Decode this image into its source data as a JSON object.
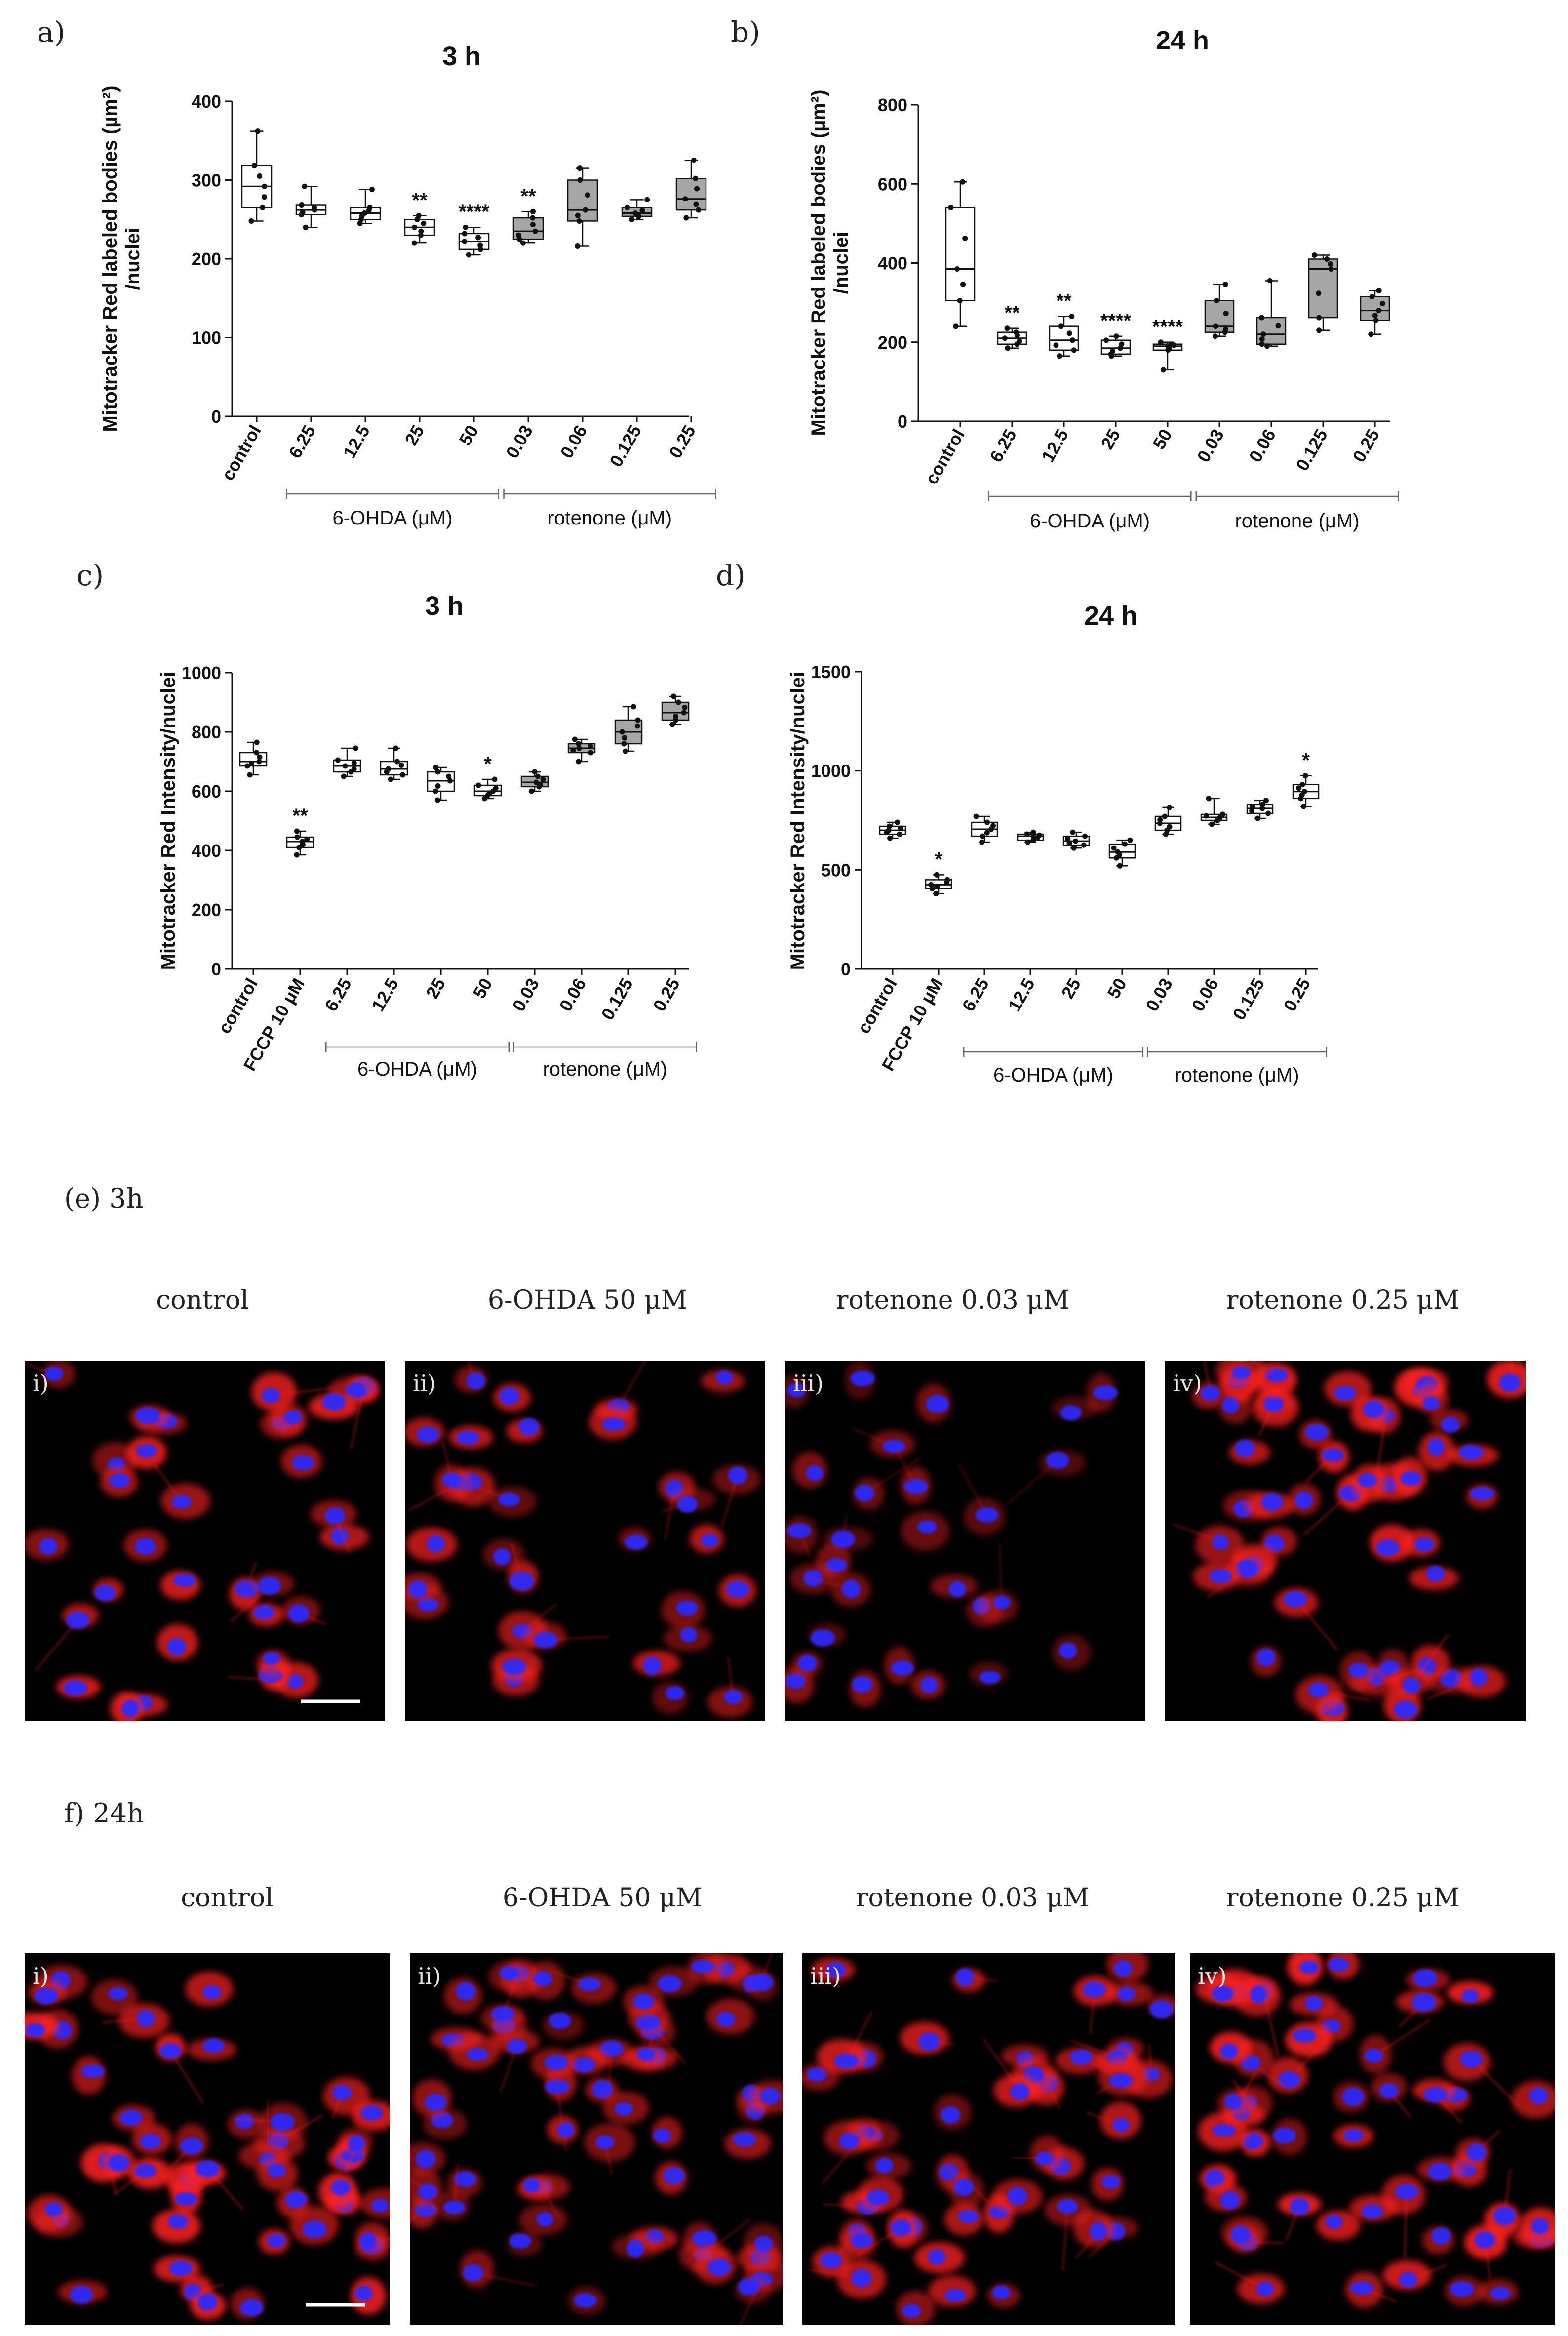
{
  "chart_data": [
    {
      "id": "a",
      "type": "box",
      "panel_label": "a)",
      "title": "3 h",
      "ylabel_lines": [
        "Mitotracker Red labeled bodies (µm²)",
        "/nuclei"
      ],
      "ylim": [
        0,
        400
      ],
      "yticks": [
        0,
        100,
        200,
        300,
        400
      ],
      "categories": [
        "control",
        "6.25",
        "12.5",
        "25",
        "50",
        "0.03",
        "0.06",
        "0.125",
        "0.25"
      ],
      "groups": [
        {
          "label": "6-OHDA (μM)",
          "from": 1,
          "to": 4
        },
        {
          "label": "rotenone (μM)",
          "from": 5,
          "to": 8
        }
      ],
      "boxes": [
        {
          "min": 248,
          "q1": 265,
          "median": 292,
          "q3": 318,
          "max": 362,
          "fill": "white",
          "sig": ""
        },
        {
          "min": 240,
          "q1": 256,
          "median": 262,
          "q3": 268,
          "max": 292,
          "fill": "white",
          "sig": ""
        },
        {
          "min": 245,
          "q1": 250,
          "median": 258,
          "q3": 265,
          "max": 288,
          "fill": "white",
          "sig": ""
        },
        {
          "min": 220,
          "q1": 230,
          "median": 240,
          "q3": 250,
          "max": 255,
          "fill": "white",
          "sig": "**"
        },
        {
          "min": 205,
          "q1": 212,
          "median": 222,
          "q3": 232,
          "max": 240,
          "fill": "white",
          "sig": "****"
        },
        {
          "min": 220,
          "q1": 225,
          "median": 235,
          "q3": 252,
          "max": 260,
          "fill": "gray",
          "sig": "**"
        },
        {
          "min": 216,
          "q1": 248,
          "median": 262,
          "q3": 300,
          "max": 315,
          "fill": "gray",
          "sig": ""
        },
        {
          "min": 250,
          "q1": 254,
          "median": 258,
          "q3": 265,
          "max": 275,
          "fill": "gray",
          "sig": ""
        },
        {
          "min": 252,
          "q1": 262,
          "median": 276,
          "q3": 302,
          "max": 325,
          "fill": "gray",
          "sig": ""
        }
      ]
    },
    {
      "id": "b",
      "type": "box",
      "panel_label": "b)",
      "title": "24 h",
      "ylabel_lines": [
        "Mitotracker Red labeled bodies (µm²)",
        "/nuclei"
      ],
      "ylim": [
        0,
        800
      ],
      "yticks": [
        0,
        200,
        400,
        600,
        800
      ],
      "categories": [
        "control",
        "6.25",
        "12.5",
        "25",
        "50",
        "0.03",
        "0.06",
        "0.125",
        "0.25"
      ],
      "groups": [
        {
          "label": "6-OHDA (μM)",
          "from": 1,
          "to": 4
        },
        {
          "label": "rotenone (μM)",
          "from": 5,
          "to": 8
        }
      ],
      "boxes": [
        {
          "min": 240,
          "q1": 305,
          "median": 385,
          "q3": 540,
          "max": 605,
          "fill": "white",
          "sig": ""
        },
        {
          "min": 185,
          "q1": 195,
          "median": 210,
          "q3": 225,
          "max": 235,
          "fill": "white",
          "sig": "**"
        },
        {
          "min": 165,
          "q1": 180,
          "median": 205,
          "q3": 240,
          "max": 265,
          "fill": "white",
          "sig": "**"
        },
        {
          "min": 165,
          "q1": 170,
          "median": 185,
          "q3": 205,
          "max": 215,
          "fill": "white",
          "sig": "****"
        },
        {
          "min": 130,
          "q1": 180,
          "median": 190,
          "q3": 195,
          "max": 200,
          "fill": "white",
          "sig": "****"
        },
        {
          "min": 215,
          "q1": 225,
          "median": 240,
          "q3": 305,
          "max": 345,
          "fill": "gray",
          "sig": ""
        },
        {
          "min": 190,
          "q1": 195,
          "median": 220,
          "q3": 262,
          "max": 355,
          "fill": "gray",
          "sig": ""
        },
        {
          "min": 230,
          "q1": 262,
          "median": 385,
          "q3": 410,
          "max": 420,
          "fill": "gray",
          "sig": ""
        },
        {
          "min": 220,
          "q1": 255,
          "median": 280,
          "q3": 315,
          "max": 330,
          "fill": "gray",
          "sig": ""
        }
      ]
    },
    {
      "id": "c",
      "type": "box",
      "panel_label": "c)",
      "title": "3 h",
      "ylabel_lines": [
        "Mitotracker Red Intensity/nuclei"
      ],
      "ylim": [
        0,
        1000
      ],
      "yticks": [
        0,
        200,
        400,
        600,
        800,
        1000
      ],
      "categories": [
        "control",
        "FCCP 10 μM",
        "6.25",
        "12.5",
        "25",
        "50",
        "0.03",
        "0.06",
        "0.125",
        "0.25"
      ],
      "groups": [
        {
          "label": "6-OHDA (μM)",
          "from": 2,
          "to": 5
        },
        {
          "label": "rotenone (μM)",
          "from": 6,
          "to": 9
        }
      ],
      "boxes": [
        {
          "min": 655,
          "q1": 685,
          "median": 700,
          "q3": 730,
          "max": 765,
          "fill": "white",
          "sig": ""
        },
        {
          "min": 385,
          "q1": 410,
          "median": 430,
          "q3": 445,
          "max": 465,
          "fill": "white",
          "sig": "**"
        },
        {
          "min": 650,
          "q1": 665,
          "median": 685,
          "q3": 705,
          "max": 745,
          "fill": "white",
          "sig": ""
        },
        {
          "min": 640,
          "q1": 655,
          "median": 675,
          "q3": 700,
          "max": 745,
          "fill": "white",
          "sig": ""
        },
        {
          "min": 570,
          "q1": 600,
          "median": 635,
          "q3": 665,
          "max": 680,
          "fill": "white",
          "sig": ""
        },
        {
          "min": 575,
          "q1": 585,
          "median": 600,
          "q3": 620,
          "max": 640,
          "fill": "white",
          "sig": "*"
        },
        {
          "min": 600,
          "q1": 615,
          "median": 630,
          "q3": 650,
          "max": 665,
          "fill": "gray",
          "sig": ""
        },
        {
          "min": 700,
          "q1": 730,
          "median": 745,
          "q3": 760,
          "max": 775,
          "fill": "gray",
          "sig": ""
        },
        {
          "min": 735,
          "q1": 760,
          "median": 800,
          "q3": 840,
          "max": 885,
          "fill": "gray",
          "sig": ""
        },
        {
          "min": 825,
          "q1": 840,
          "median": 865,
          "q3": 900,
          "max": 920,
          "fill": "gray",
          "sig": ""
        }
      ]
    },
    {
      "id": "d",
      "type": "box",
      "panel_label": "d)",
      "title": "24 h",
      "ylabel_lines": [
        "Mitotracker Red Intensity/nuclei"
      ],
      "ylim": [
        0,
        1500
      ],
      "yticks": [
        0,
        500,
        1000,
        1500
      ],
      "categories": [
        "control",
        "FCCP 10 μM",
        "6.25",
        "12.5",
        "25",
        "50",
        "0.03",
        "0.06",
        "0.125",
        "0.25"
      ],
      "groups": [
        {
          "label": "6-OHDA (μM)",
          "from": 2,
          "to": 5
        },
        {
          "label": "rotenone (μM)",
          "from": 6,
          "to": 9
        }
      ],
      "boxes": [
        {
          "min": 660,
          "q1": 680,
          "median": 700,
          "q3": 720,
          "max": 740,
          "fill": "white",
          "sig": ""
        },
        {
          "min": 380,
          "q1": 405,
          "median": 425,
          "q3": 450,
          "max": 475,
          "fill": "white",
          "sig": "*"
        },
        {
          "min": 640,
          "q1": 670,
          "median": 705,
          "q3": 740,
          "max": 770,
          "fill": "white",
          "sig": ""
        },
        {
          "min": 640,
          "q1": 650,
          "median": 670,
          "q3": 680,
          "max": 690,
          "fill": "white",
          "sig": ""
        },
        {
          "min": 610,
          "q1": 625,
          "median": 645,
          "q3": 670,
          "max": 690,
          "fill": "white",
          "sig": ""
        },
        {
          "min": 520,
          "q1": 560,
          "median": 590,
          "q3": 630,
          "max": 650,
          "fill": "white",
          "sig": ""
        },
        {
          "min": 680,
          "q1": 700,
          "median": 735,
          "q3": 770,
          "max": 815,
          "fill": "white",
          "sig": ""
        },
        {
          "min": 730,
          "q1": 750,
          "median": 765,
          "q3": 780,
          "max": 860,
          "fill": "white",
          "sig": ""
        },
        {
          "min": 760,
          "q1": 785,
          "median": 810,
          "q3": 830,
          "max": 850,
          "fill": "white",
          "sig": ""
        },
        {
          "min": 820,
          "q1": 860,
          "median": 895,
          "q3": 930,
          "max": 975,
          "fill": "white",
          "sig": "*"
        }
      ]
    }
  ],
  "micrographs": [
    {
      "id": "e",
      "section_label": "(e) 3h",
      "scale_bar_on": 0,
      "images": [
        {
          "caption": "control",
          "roman": "i)",
          "cells": 32,
          "red": 0.95
        },
        {
          "caption": "6-OHDA 50 μM",
          "roman": "ii)",
          "cells": 32,
          "red": 0.8
        },
        {
          "caption": "rotenone 0.03 μM",
          "roman": "iii)",
          "cells": 28,
          "red": 0.6
        },
        {
          "caption": "rotenone 0.25 μM",
          "roman": "iv)",
          "cells": 48,
          "red": 1.0
        }
      ]
    },
    {
      "id": "f",
      "section_label": "f)  24h",
      "scale_bar_on": 0,
      "images": [
        {
          "caption": "control",
          "roman": "i)",
          "cells": 46,
          "red": 1.0
        },
        {
          "caption": "6-OHDA 50 μM",
          "roman": "ii)",
          "cells": 58,
          "red": 0.75
        },
        {
          "caption": "rotenone 0.03 μM",
          "roman": "iii)",
          "cells": 48,
          "red": 0.85
        },
        {
          "caption": "rotenone 0.25 μM",
          "roman": "iv)",
          "cells": 50,
          "red": 1.0
        }
      ]
    }
  ],
  "colors": {
    "axis": "#111111",
    "box_white": "#ffffff",
    "box_gray": "#a6a6a6",
    "point": "#111111",
    "nucleus": "#2a2aff",
    "mito": "#ff2020",
    "micrograph_bg": "#000000"
  }
}
